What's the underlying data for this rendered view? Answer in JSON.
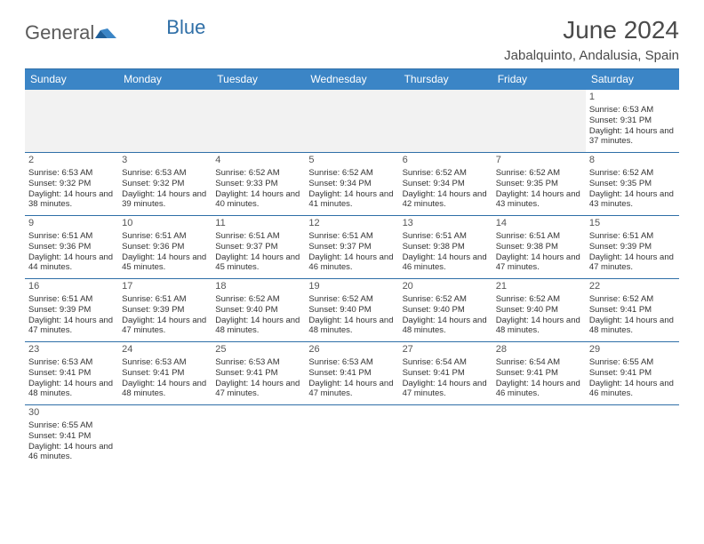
{
  "logo": {
    "text1": "General",
    "text2": "Blue"
  },
  "title": "June 2024",
  "location": "Jabalquinto, Andalusia, Spain",
  "colors": {
    "accent": "#3b85c6",
    "border": "#2f6fa7",
    "empty_bg": "#f2f2f2",
    "text_gray": "#5b5b5b"
  },
  "day_headers": [
    "Sunday",
    "Monday",
    "Tuesday",
    "Wednesday",
    "Thursday",
    "Friday",
    "Saturday"
  ],
  "weeks": [
    [
      {
        "empty": true
      },
      {
        "empty": true
      },
      {
        "empty": true
      },
      {
        "empty": true
      },
      {
        "empty": true
      },
      {
        "empty": true
      },
      {
        "day": "1",
        "sunrise": "Sunrise: 6:53 AM",
        "sunset": "Sunset: 9:31 PM",
        "daylight": "Daylight: 14 hours and 37 minutes."
      }
    ],
    [
      {
        "day": "2",
        "sunrise": "Sunrise: 6:53 AM",
        "sunset": "Sunset: 9:32 PM",
        "daylight": "Daylight: 14 hours and 38 minutes."
      },
      {
        "day": "3",
        "sunrise": "Sunrise: 6:53 AM",
        "sunset": "Sunset: 9:32 PM",
        "daylight": "Daylight: 14 hours and 39 minutes."
      },
      {
        "day": "4",
        "sunrise": "Sunrise: 6:52 AM",
        "sunset": "Sunset: 9:33 PM",
        "daylight": "Daylight: 14 hours and 40 minutes."
      },
      {
        "day": "5",
        "sunrise": "Sunrise: 6:52 AM",
        "sunset": "Sunset: 9:34 PM",
        "daylight": "Daylight: 14 hours and 41 minutes."
      },
      {
        "day": "6",
        "sunrise": "Sunrise: 6:52 AM",
        "sunset": "Sunset: 9:34 PM",
        "daylight": "Daylight: 14 hours and 42 minutes."
      },
      {
        "day": "7",
        "sunrise": "Sunrise: 6:52 AM",
        "sunset": "Sunset: 9:35 PM",
        "daylight": "Daylight: 14 hours and 43 minutes."
      },
      {
        "day": "8",
        "sunrise": "Sunrise: 6:52 AM",
        "sunset": "Sunset: 9:35 PM",
        "daylight": "Daylight: 14 hours and 43 minutes."
      }
    ],
    [
      {
        "day": "9",
        "sunrise": "Sunrise: 6:51 AM",
        "sunset": "Sunset: 9:36 PM",
        "daylight": "Daylight: 14 hours and 44 minutes."
      },
      {
        "day": "10",
        "sunrise": "Sunrise: 6:51 AM",
        "sunset": "Sunset: 9:36 PM",
        "daylight": "Daylight: 14 hours and 45 minutes."
      },
      {
        "day": "11",
        "sunrise": "Sunrise: 6:51 AM",
        "sunset": "Sunset: 9:37 PM",
        "daylight": "Daylight: 14 hours and 45 minutes."
      },
      {
        "day": "12",
        "sunrise": "Sunrise: 6:51 AM",
        "sunset": "Sunset: 9:37 PM",
        "daylight": "Daylight: 14 hours and 46 minutes."
      },
      {
        "day": "13",
        "sunrise": "Sunrise: 6:51 AM",
        "sunset": "Sunset: 9:38 PM",
        "daylight": "Daylight: 14 hours and 46 minutes."
      },
      {
        "day": "14",
        "sunrise": "Sunrise: 6:51 AM",
        "sunset": "Sunset: 9:38 PM",
        "daylight": "Daylight: 14 hours and 47 minutes."
      },
      {
        "day": "15",
        "sunrise": "Sunrise: 6:51 AM",
        "sunset": "Sunset: 9:39 PM",
        "daylight": "Daylight: 14 hours and 47 minutes."
      }
    ],
    [
      {
        "day": "16",
        "sunrise": "Sunrise: 6:51 AM",
        "sunset": "Sunset: 9:39 PM",
        "daylight": "Daylight: 14 hours and 47 minutes."
      },
      {
        "day": "17",
        "sunrise": "Sunrise: 6:51 AM",
        "sunset": "Sunset: 9:39 PM",
        "daylight": "Daylight: 14 hours and 47 minutes."
      },
      {
        "day": "18",
        "sunrise": "Sunrise: 6:52 AM",
        "sunset": "Sunset: 9:40 PM",
        "daylight": "Daylight: 14 hours and 48 minutes."
      },
      {
        "day": "19",
        "sunrise": "Sunrise: 6:52 AM",
        "sunset": "Sunset: 9:40 PM",
        "daylight": "Daylight: 14 hours and 48 minutes."
      },
      {
        "day": "20",
        "sunrise": "Sunrise: 6:52 AM",
        "sunset": "Sunset: 9:40 PM",
        "daylight": "Daylight: 14 hours and 48 minutes."
      },
      {
        "day": "21",
        "sunrise": "Sunrise: 6:52 AM",
        "sunset": "Sunset: 9:40 PM",
        "daylight": "Daylight: 14 hours and 48 minutes."
      },
      {
        "day": "22",
        "sunrise": "Sunrise: 6:52 AM",
        "sunset": "Sunset: 9:41 PM",
        "daylight": "Daylight: 14 hours and 48 minutes."
      }
    ],
    [
      {
        "day": "23",
        "sunrise": "Sunrise: 6:53 AM",
        "sunset": "Sunset: 9:41 PM",
        "daylight": "Daylight: 14 hours and 48 minutes."
      },
      {
        "day": "24",
        "sunrise": "Sunrise: 6:53 AM",
        "sunset": "Sunset: 9:41 PM",
        "daylight": "Daylight: 14 hours and 48 minutes."
      },
      {
        "day": "25",
        "sunrise": "Sunrise: 6:53 AM",
        "sunset": "Sunset: 9:41 PM",
        "daylight": "Daylight: 14 hours and 47 minutes."
      },
      {
        "day": "26",
        "sunrise": "Sunrise: 6:53 AM",
        "sunset": "Sunset: 9:41 PM",
        "daylight": "Daylight: 14 hours and 47 minutes."
      },
      {
        "day": "27",
        "sunrise": "Sunrise: 6:54 AM",
        "sunset": "Sunset: 9:41 PM",
        "daylight": "Daylight: 14 hours and 47 minutes."
      },
      {
        "day": "28",
        "sunrise": "Sunrise: 6:54 AM",
        "sunset": "Sunset: 9:41 PM",
        "daylight": "Daylight: 14 hours and 46 minutes."
      },
      {
        "day": "29",
        "sunrise": "Sunrise: 6:55 AM",
        "sunset": "Sunset: 9:41 PM",
        "daylight": "Daylight: 14 hours and 46 minutes."
      }
    ],
    [
      {
        "day": "30",
        "sunrise": "Sunrise: 6:55 AM",
        "sunset": "Sunset: 9:41 PM",
        "daylight": "Daylight: 14 hours and 46 minutes."
      },
      {
        "empty": true,
        "blank": true
      },
      {
        "empty": true,
        "blank": true
      },
      {
        "empty": true,
        "blank": true
      },
      {
        "empty": true,
        "blank": true
      },
      {
        "empty": true,
        "blank": true
      },
      {
        "empty": true,
        "blank": true
      }
    ]
  ]
}
